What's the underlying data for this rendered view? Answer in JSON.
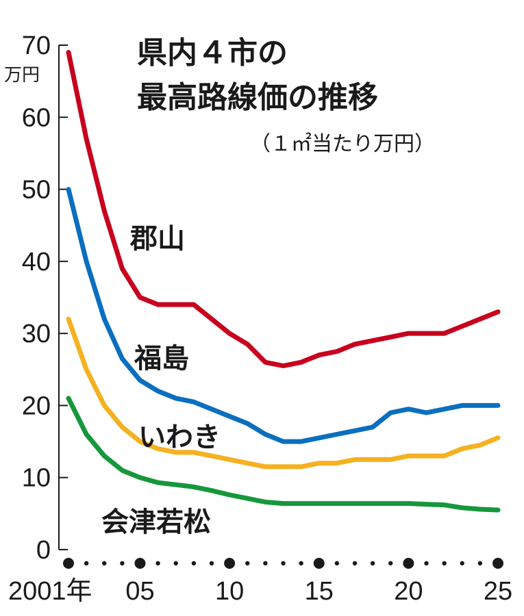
{
  "chart_data": {
    "type": "line",
    "title_lines": [
      "県内４市の",
      "最高路線価の推移"
    ],
    "subtitle": "（１㎡当たり万円）",
    "y_unit": "万円",
    "ylim": [
      0,
      70
    ],
    "yticks": [
      "0",
      "10",
      "20",
      "30",
      "40",
      "50",
      "60",
      "70"
    ],
    "xlim": [
      2001,
      2025
    ],
    "x": [
      2001,
      2002,
      2003,
      2004,
      2005,
      2006,
      2007,
      2008,
      2009,
      2010,
      2011,
      2012,
      2013,
      2014,
      2015,
      2016,
      2017,
      2018,
      2019,
      2020,
      2021,
      2022,
      2023,
      2024,
      2025
    ],
    "x_major_ticks": [
      {
        "year": 2001,
        "label": "2001年"
      },
      {
        "year": 2005,
        "label": "05"
      },
      {
        "year": 2010,
        "label": "10"
      },
      {
        "year": 2015,
        "label": "15"
      },
      {
        "year": 2020,
        "label": "20"
      },
      {
        "year": 2025,
        "label": "25"
      }
    ],
    "grid": false,
    "series": [
      {
        "name": "郡山",
        "color": "#c8001e",
        "values": [
          69,
          57,
          47,
          39,
          35,
          34,
          34,
          34,
          32,
          30,
          28.5,
          26,
          25.5,
          26,
          27,
          27.5,
          28.5,
          29,
          29.5,
          30,
          30,
          30,
          31,
          32,
          33
        ]
      },
      {
        "name": "福島",
        "color": "#0a6fbf",
        "values": [
          50,
          40,
          32,
          26.5,
          23.5,
          22,
          21,
          20.5,
          19.5,
          18.5,
          17.5,
          16,
          15,
          15,
          15.5,
          16,
          16.5,
          17,
          19,
          19.5,
          19,
          19.5,
          20,
          20,
          20
        ]
      },
      {
        "name": "いわき",
        "color": "#f5b120",
        "values": [
          32,
          25,
          20,
          17,
          15,
          14,
          13.5,
          13.5,
          13,
          12.5,
          12,
          11.5,
          11.5,
          11.5,
          12,
          12,
          12.5,
          12.5,
          12.5,
          13,
          13,
          13,
          14,
          14.5,
          15.5
        ]
      },
      {
        "name": "会津若松",
        "color": "#16973c",
        "values": [
          21,
          16,
          13,
          11,
          10,
          9.3,
          9,
          8.7,
          8.2,
          7.6,
          7.1,
          6.6,
          6.4,
          6.4,
          6.4,
          6.4,
          6.4,
          6.4,
          6.4,
          6.4,
          6.3,
          6.2,
          5.8,
          5.6,
          5.5
        ]
      }
    ]
  }
}
